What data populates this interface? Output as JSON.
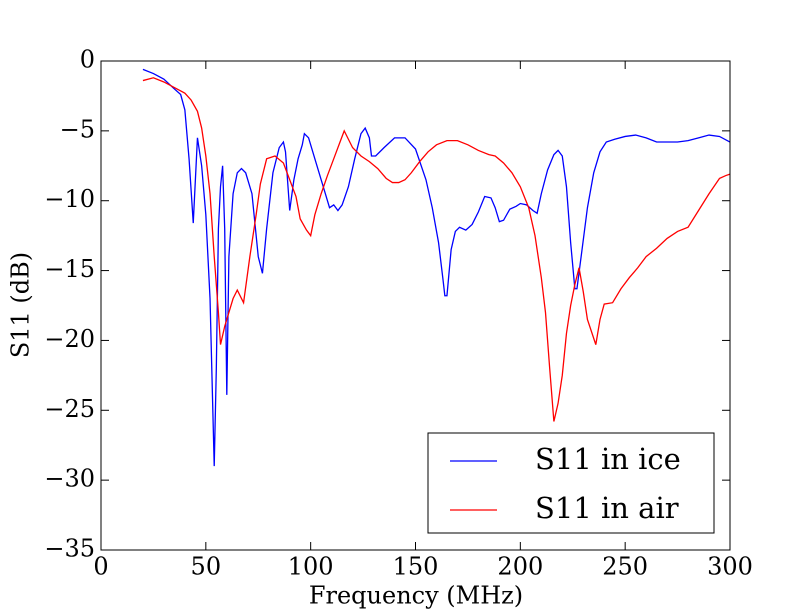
{
  "chart_data": {
    "type": "line",
    "xlabel": "Frequency (MHz)",
    "ylabel": "S11 (dB)",
    "xlim": [
      0,
      300
    ],
    "ylim": [
      -35,
      0
    ],
    "xticks": [
      0,
      50,
      100,
      150,
      200,
      250,
      300
    ],
    "yticks": [
      0,
      {
        "value": -5,
        "label": "−5"
      },
      {
        "value": -10,
        "label": "−10"
      },
      {
        "value": -15,
        "label": "−15"
      },
      {
        "value": -20,
        "label": "−20"
      },
      {
        "value": -25,
        "label": "−25"
      },
      {
        "value": -30,
        "label": "−30"
      },
      {
        "value": -35,
        "label": "−35"
      }
    ],
    "legend": "lower right",
    "series": [
      {
        "name": "S11 in ice",
        "color": "#0000ff",
        "x": [
          20,
          25,
          30,
          35,
          38,
          40,
          42,
          44,
          46,
          48,
          50,
          52,
          54,
          55,
          56,
          57,
          58,
          59,
          60,
          61,
          63,
          65,
          67,
          69,
          72,
          75,
          77,
          79,
          82,
          85,
          87,
          88,
          90,
          92,
          94,
          96,
          97,
          99,
          102,
          106,
          109,
          111,
          113,
          115,
          118,
          121,
          124,
          126,
          128,
          129,
          131,
          135,
          140,
          145,
          150,
          155,
          158,
          161,
          163,
          164,
          165,
          167,
          169,
          171,
          174,
          177,
          180,
          183,
          186,
          188,
          190,
          192,
          195,
          198,
          200,
          203,
          206,
          208,
          210,
          213,
          216,
          218,
          220,
          222,
          224,
          226,
          227,
          229,
          232,
          235,
          238,
          241,
          245,
          250,
          255,
          260,
          265,
          270,
          275,
          280,
          285,
          290,
          295,
          300
        ],
        "values": [
          -0.6,
          -0.9,
          -1.3,
          -2.0,
          -2.4,
          -3.5,
          -7,
          -11.6,
          -5.5,
          -7.5,
          -11,
          -17,
          -29,
          -22,
          -12,
          -9,
          -7.5,
          -12,
          -23.9,
          -14,
          -9.5,
          -8,
          -7.7,
          -8,
          -9.5,
          -14,
          -15.2,
          -12,
          -8,
          -6.2,
          -5.8,
          -6.5,
          -10.7,
          -8.5,
          -7,
          -6,
          -5.2,
          -5.5,
          -7,
          -9,
          -10.5,
          -10.3,
          -10.7,
          -10.3,
          -9,
          -7,
          -5.2,
          -4.8,
          -5.5,
          -6.8,
          -6.8,
          -6.2,
          -5.5,
          -5.5,
          -6.3,
          -8.5,
          -10.5,
          -13,
          -15.5,
          -16.8,
          -16.8,
          -13.5,
          -12.2,
          -11.9,
          -12.1,
          -11.7,
          -10.8,
          -9.7,
          -9.8,
          -10.5,
          -11.5,
          -11.4,
          -10.6,
          -10.4,
          -10.2,
          -10.3,
          -10.7,
          -10.9,
          -9.5,
          -7.8,
          -6.7,
          -6.4,
          -6.8,
          -9,
          -13,
          -16.3,
          -16.3,
          -14,
          -10.5,
          -8,
          -6.5,
          -5.8,
          -5.6,
          -5.4,
          -5.3,
          -5.5,
          -5.8,
          -5.8,
          -5.8,
          -5.7,
          -5.5,
          -5.3,
          -5.4,
          -5.8
        ]
      },
      {
        "name": "S11 in air",
        "color": "#ff0000",
        "x": [
          20,
          25,
          30,
          35,
          40,
          43,
          46,
          48,
          50,
          52,
          54,
          56,
          57,
          59,
          61,
          63,
          65,
          68,
          71,
          74,
          76,
          79,
          83,
          87,
          90,
          93,
          95,
          98,
          100,
          102,
          105,
          108,
          111,
          114,
          116,
          118,
          120,
          124,
          128,
          132,
          136,
          139,
          142,
          145,
          148,
          152,
          156,
          160,
          165,
          170,
          175,
          180,
          185,
          188,
          192,
          196,
          200,
          204,
          207,
          210,
          212,
          214,
          216,
          218,
          220,
          222,
          224,
          226,
          228,
          230,
          232,
          236,
          238,
          240,
          244,
          248,
          252,
          256,
          260,
          265,
          270,
          275,
          280,
          285,
          290,
          295,
          298,
          300
        ],
        "values": [
          -1.4,
          -1.2,
          -1.5,
          -1.9,
          -2.3,
          -2.8,
          -3.6,
          -4.8,
          -6.8,
          -9.5,
          -14,
          -18,
          -20.3,
          -19,
          -18,
          -17,
          -16.4,
          -17.3,
          -14,
          -11,
          -8.8,
          -7,
          -6.8,
          -7.3,
          -8.5,
          -9.7,
          -11.3,
          -12.1,
          -12.5,
          -11,
          -9.5,
          -8.2,
          -7,
          -5.8,
          -5,
          -5.6,
          -6.2,
          -6.8,
          -7.2,
          -7.7,
          -8.4,
          -8.7,
          -8.7,
          -8.5,
          -8.0,
          -7.2,
          -6.5,
          -6,
          -5.7,
          -5.7,
          -6,
          -6.4,
          -6.7,
          -6.8,
          -7.3,
          -8,
          -9,
          -10.5,
          -12.5,
          -15.5,
          -18,
          -22,
          -25.8,
          -24.5,
          -22.5,
          -19.5,
          -17.5,
          -16,
          -14.8,
          -16.5,
          -18.5,
          -20.3,
          -18.5,
          -17.4,
          -17.3,
          -16.3,
          -15.5,
          -14.8,
          -14,
          -13.4,
          -12.7,
          -12.2,
          -11.9,
          -10.7,
          -9.5,
          -8.4,
          -8.2,
          -8.1
        ]
      }
    ]
  }
}
